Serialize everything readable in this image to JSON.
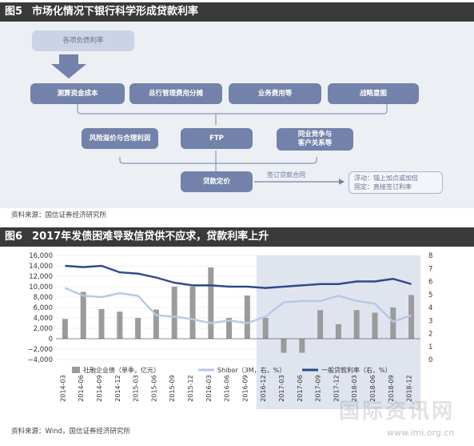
{
  "figure5": {
    "num": "图5",
    "title": "市场化情况下银行科学形成贷款利率",
    "boxes": {
      "debt_cost": "各项负债利率",
      "fund_cost": "测算资金成本",
      "mgmt_cost": "总行管理费用分摊",
      "biz_cost": "业务费用等",
      "strategy": "战略意图",
      "risk": "风险溢价与合理利润",
      "ftp": "FTP",
      "competition_l1": "同业竞争与",
      "competition_l2": "客户关系等",
      "pricing": "贷款定价",
      "contract_label": "签订贷款合同",
      "float_line": "浮动：锚上加点或加倍",
      "fixed_line": "固定：直接签订利率"
    },
    "source": "资料来源：国信证券经济研究所"
  },
  "figure6": {
    "num": "图6",
    "title": "2017年发债困难导致信贷供不应求，贷款利率上升",
    "source": "资料来源：Wind，国信证券经济研究所",
    "watermark_cn": "国际资讯网",
    "watermark_url": "www.imi.org.cn"
  },
  "colors": {
    "header_bg": "#3a3a3a",
    "panel_bg": "#eceff4",
    "box_dark": "#7382aa",
    "bar": "#9b9b9b",
    "shibor": "#b7c8e6",
    "loan_rate": "#2e4a8c",
    "shade": "#c5cde0"
  },
  "chart_data": {
    "type": "bar",
    "categories": [
      "2014-03",
      "2014-06",
      "2014-09",
      "2014-12",
      "2015-03",
      "2015-06",
      "2015-09",
      "2015-12",
      "2016-03",
      "2016-06",
      "2016-09",
      "2016-12",
      "2017-03",
      "2017-06",
      "2017-09",
      "2017-12",
      "2018-03",
      "2018-06",
      "2018-09",
      "2018-12"
    ],
    "left_axis": {
      "min": -4000,
      "max": 16000,
      "ticks": [
        "16,000",
        "14,000",
        "12,000",
        "10,000",
        "8,000",
        "6,000",
        "4,000",
        "2,000",
        "0",
        "−2,000",
        "−4,000"
      ]
    },
    "right_axis": {
      "min": 0,
      "max": 8,
      "ticks": [
        "8",
        "7",
        "6",
        "5",
        "4",
        "3",
        "2",
        "1",
        "0"
      ]
    },
    "shaded_range": [
      "2016-12",
      "2018-12"
    ],
    "series": [
      {
        "name": "社融企业债（单季，亿元）",
        "type": "bar",
        "axis": "left",
        "values": [
          3800,
          9000,
          5700,
          5200,
          4000,
          5600,
          10000,
          10000,
          13700,
          4000,
          8300,
          4000,
          -2700,
          -2700,
          5500,
          2800,
          5500,
          5000,
          6000,
          8400
        ]
      },
      {
        "name": "Shibor（3M，右，%）",
        "type": "line",
        "axis": "right",
        "values": [
          5.5,
          4.9,
          4.8,
          5.1,
          4.9,
          3.4,
          3.3,
          3.1,
          2.8,
          3.0,
          2.8,
          3.3,
          4.4,
          4.5,
          4.5,
          4.9,
          4.5,
          4.3,
          2.9,
          3.4
        ]
      },
      {
        "name": "一般贷款利率（右，%）",
        "type": "line",
        "axis": "right",
        "values": [
          7.2,
          7.1,
          7.2,
          6.7,
          6.6,
          6.3,
          5.9,
          5.7,
          5.7,
          5.6,
          5.6,
          5.5,
          5.6,
          5.7,
          5.8,
          5.8,
          6.0,
          6.0,
          6.2,
          5.8
        ]
      }
    ]
  }
}
